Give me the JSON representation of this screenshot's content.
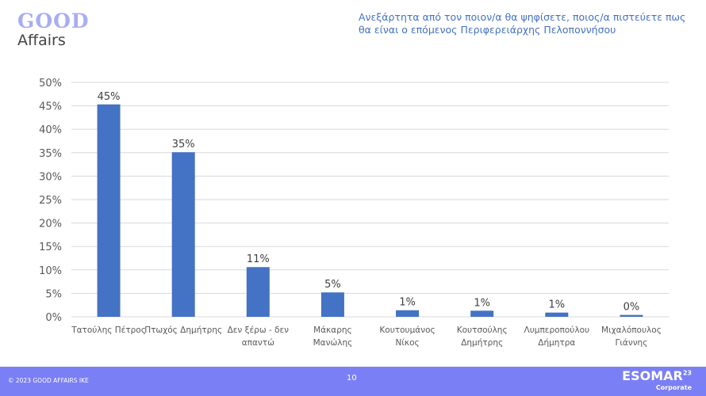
{
  "logo": {
    "line1": "GOOD",
    "line2": "Affairs"
  },
  "footer": {
    "copyright": "© 2023 GOOD AFFAIRS IKE",
    "page": "10",
    "esomar": "ESOMAR",
    "esomar_sup": "23",
    "corporate": "Corporate"
  },
  "colors": {
    "bar": "#4472c4",
    "footer": "#7b7ff5"
  },
  "chart_data": {
    "type": "bar",
    "title": "Ανεξάρτητα από τον ποιον/α θα ψηφίσετε, ποιος/α πιστεύετε πως θα είναι ο επόμενος Περιφερειάρχης Πελοποννήσου",
    "categories": [
      [
        "Τατούλης Πέτρος"
      ],
      [
        "Πτωχός Δημήτρης"
      ],
      [
        "Δεν ξέρω - δεν",
        "απαντώ"
      ],
      [
        "Μάκαρης",
        "Μανώλης"
      ],
      [
        "Κουτουμάνος",
        "Νίκος"
      ],
      [
        "Κουτσούλης",
        "Δημήτρης"
      ],
      [
        "Λυμπεροπούλου",
        "Δήμητρα"
      ],
      [
        "Μιχαλόπουλος",
        "Γιάννης"
      ]
    ],
    "values": [
      45.3,
      35.1,
      10.6,
      5.2,
      1.4,
      1.3,
      0.9,
      0.4
    ],
    "labels": [
      "45%",
      "35%",
      "11%",
      "5%",
      "1%",
      "1%",
      "1%",
      "0%"
    ],
    "yticks": [
      "0%",
      "5%",
      "10%",
      "15%",
      "20%",
      "25%",
      "30%",
      "35%",
      "40%",
      "45%",
      "50%"
    ],
    "ylim": [
      0,
      50
    ],
    "grid": true
  }
}
